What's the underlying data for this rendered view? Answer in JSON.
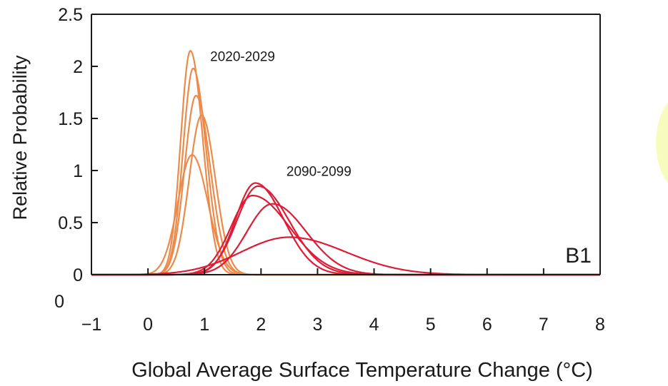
{
  "chart_data": {
    "type": "line",
    "xlabel": "Global Average Surface Temperature Change (°C)",
    "ylabel": "Relative Probability",
    "xlim": [
      -1,
      8
    ],
    "ylim": [
      0,
      2.5
    ],
    "x_ticks": [
      "−1",
      "0",
      "1",
      "2",
      "3",
      "4",
      "5",
      "6",
      "7",
      "8"
    ],
    "y_ticks": [
      "0",
      "0.5",
      "1",
      "1.5",
      "2",
      "2.5"
    ],
    "grid": false,
    "panel_label": "B1",
    "annotations": [
      {
        "text": "2020-2029",
        "x": 1.1,
        "y": 2.05
      },
      {
        "text": "2090-2099",
        "x": 2.45,
        "y": 0.95
      }
    ],
    "series_groups": [
      {
        "period": "2020-2029",
        "color": "#ec8a4a",
        "series": [
          {
            "peak_x": 0.75,
            "peak_y": 2.15,
            "sigma_left": 0.17,
            "sigma_right": 0.22
          },
          {
            "peak_x": 0.8,
            "peak_y": 1.98,
            "sigma_left": 0.18,
            "sigma_right": 0.23
          },
          {
            "peak_x": 0.85,
            "peak_y": 1.72,
            "sigma_left": 0.2,
            "sigma_right": 0.25
          },
          {
            "peak_x": 0.95,
            "peak_y": 1.53,
            "sigma_left": 0.22,
            "sigma_right": 0.24
          },
          {
            "peak_x": 0.78,
            "peak_y": 1.15,
            "sigma_left": 0.25,
            "sigma_right": 0.28
          }
        ]
      },
      {
        "period": "2090-2099",
        "color": "#dd1c35",
        "series": [
          {
            "peak_x": 1.9,
            "peak_y": 0.88,
            "sigma_left": 0.35,
            "sigma_right": 0.5
          },
          {
            "peak_x": 1.95,
            "peak_y": 0.85,
            "sigma_left": 0.38,
            "sigma_right": 0.55
          },
          {
            "peak_x": 1.85,
            "peak_y": 0.76,
            "sigma_left": 0.38,
            "sigma_right": 0.65
          },
          {
            "peak_x": 2.2,
            "peak_y": 0.68,
            "sigma_left": 0.45,
            "sigma_right": 0.6
          },
          {
            "peak_x": 2.5,
            "peak_y": 0.36,
            "sigma_left": 0.85,
            "sigma_right": 1.0
          }
        ]
      }
    ]
  }
}
